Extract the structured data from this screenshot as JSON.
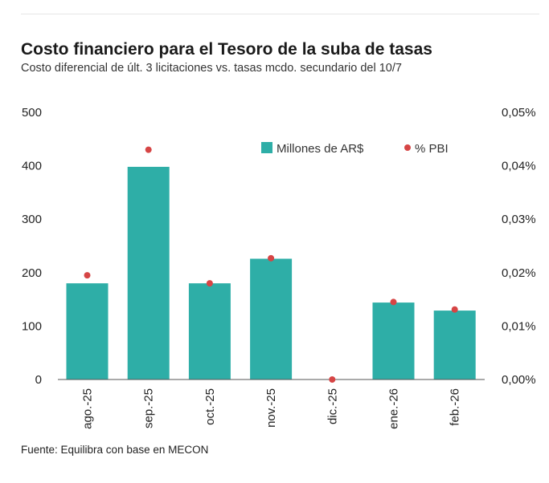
{
  "header": {
    "title": "Costo financiero para el Tesoro de la suba de tasas",
    "subtitle": "Costo diferencial de últ. 3 licitaciones vs. tasas mcdo. secundario del 10/7"
  },
  "footer": {
    "source": "Fuente: Equilibra con base en MECON"
  },
  "colors": {
    "bar": "#2eaea7",
    "dot": "#d64545",
    "axis": "#555555"
  },
  "chart_data": {
    "type": "bar",
    "categories": [
      "ago.-25",
      "sep.-25",
      "oct.-25",
      "nov.-25",
      "dic.-25",
      "ene.-26",
      "feb.-26"
    ],
    "series": [
      {
        "name": "Millones de AR$",
        "type": "bar",
        "axis": "left",
        "values": [
          180,
          398,
          180,
          226,
          0,
          144,
          129
        ]
      },
      {
        "name": "% PBI",
        "type": "scatter",
        "axis": "right",
        "values": [
          0.0195,
          0.043,
          0.018,
          0.0227,
          0.0,
          0.0145,
          0.0131
        ]
      }
    ],
    "y_left": {
      "ylim": [
        0,
        500
      ],
      "ticks": [
        0,
        100,
        200,
        300,
        400,
        500
      ],
      "tick_labels": [
        "0",
        "100",
        "200",
        "300",
        "400",
        "500"
      ]
    },
    "y_right": {
      "ylim": [
        0,
        0.05
      ],
      "ticks": [
        0,
        0.01,
        0.02,
        0.03,
        0.04,
        0.05
      ],
      "tick_labels": [
        "0,00%",
        "0,01%",
        "0,02%",
        "0,03%",
        "0,04%",
        "0,05%"
      ]
    },
    "legend": {
      "placement": "top-right",
      "entries": [
        "Millones de AR$",
        "% PBI"
      ]
    },
    "grid": false
  }
}
